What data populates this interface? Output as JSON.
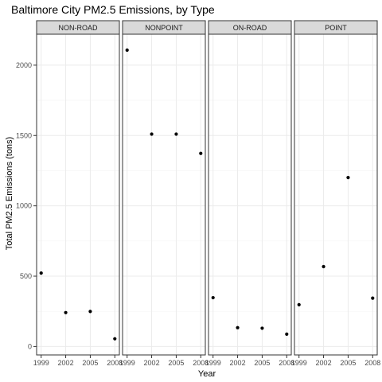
{
  "chart_data": {
    "type": "scatter",
    "title": "Baltimore City PM2.5 Emissions, by Type",
    "xlabel": "Year",
    "ylabel": "Total PM2.5 Emissions (tons)",
    "x": [
      "1999",
      "2002",
      "2005",
      "2008"
    ],
    "x_tick_labels": [
      "1999",
      "2002",
      "2005",
      "2008"
    ],
    "y_ticks": [
      0,
      500,
      1000,
      1500,
      2000
    ],
    "ylim": [
      -60,
      2220
    ],
    "grid": true,
    "facets": [
      {
        "name": "NON-ROAD",
        "values": [
          522,
          241,
          249,
          55
        ]
      },
      {
        "name": "NONPOINT",
        "values": [
          2107,
          1510,
          1510,
          1373
        ]
      },
      {
        "name": "ON-ROAD",
        "values": [
          347,
          134,
          130,
          88
        ]
      },
      {
        "name": "POINT",
        "values": [
          297,
          568,
          1201,
          344
        ]
      }
    ],
    "colors": {
      "panel_border": "#333333",
      "strip_fill": "#d9d9d9",
      "grid_major": "#ebebeb",
      "point": "#000000"
    }
  }
}
